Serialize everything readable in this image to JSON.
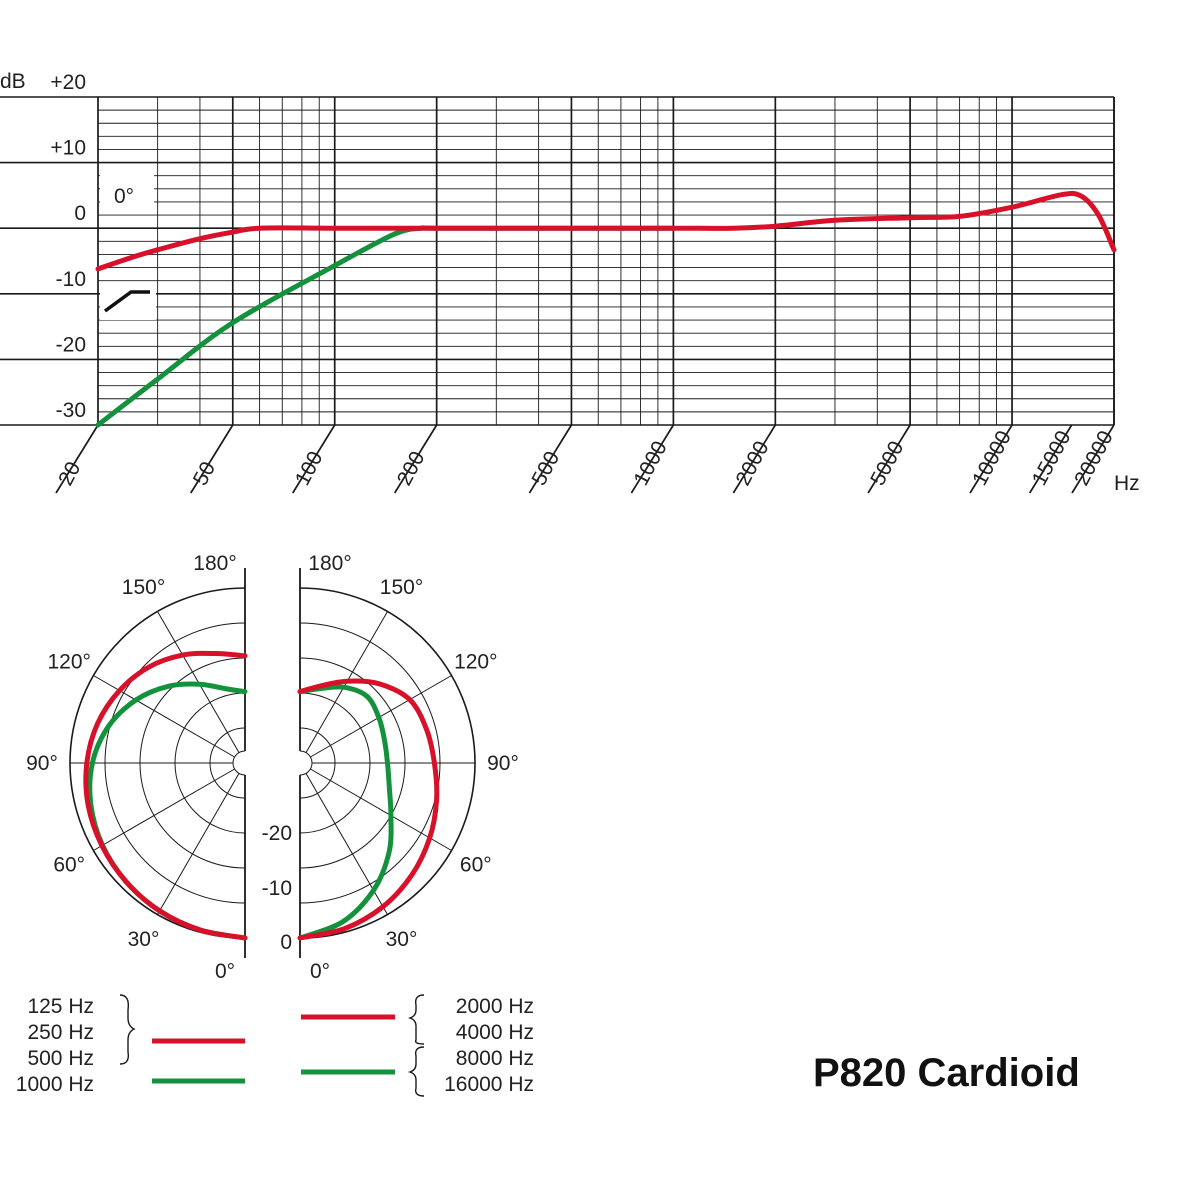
{
  "title": "P820 Cardioid",
  "colors": {
    "red": "#d8102a",
    "green": "#14913d",
    "grid": "#1a1a1a",
    "text": "#222222"
  },
  "chart_data": [
    {
      "type": "line",
      "xscale": "log",
      "xlim": [
        20,
        20000
      ],
      "ylim": [
        -30,
        20
      ],
      "x_unit_label": "Hz",
      "y_unit_label": "dB",
      "y_ticks": [
        {
          "value": 20,
          "label": "+20"
        },
        {
          "value": 10,
          "label": "+10"
        },
        {
          "value": 0,
          "label": "0"
        },
        {
          "value": -10,
          "label": "-10"
        },
        {
          "value": -20,
          "label": "-20"
        },
        {
          "value": -30,
          "label": "-30"
        }
      ],
      "x_ticks": [
        {
          "value": 20,
          "label": "20"
        },
        {
          "value": 50,
          "label": "50"
        },
        {
          "value": 100,
          "label": "100"
        },
        {
          "value": 200,
          "label": "200"
        },
        {
          "value": 500,
          "label": "500"
        },
        {
          "value": 1000,
          "label": "1000"
        },
        {
          "value": 2000,
          "label": "2000"
        },
        {
          "value": 5000,
          "label": "5000"
        },
        {
          "value": 10000,
          "label": "10000"
        },
        {
          "value": 15000,
          "label": "15000"
        },
        {
          "value": 20000,
          "label": "20000"
        }
      ],
      "angle_label": "0°",
      "grid": true,
      "series": [
        {
          "color": "red",
          "x": [
            20,
            25,
            30,
            40,
            50,
            60,
            100,
            200,
            500,
            1000,
            1500,
            2000,
            3000,
            5000,
            7000,
            10000,
            14000,
            16000,
            18000,
            20000
          ],
          "y": [
            -6.2,
            -4.5,
            -3.3,
            -1.6,
            -0.6,
            0,
            0,
            0,
            0,
            0,
            0,
            0.3,
            1.2,
            1.6,
            1.8,
            3.2,
            5.1,
            4.9,
            2.0,
            -3.3
          ]
        },
        {
          "color": "green",
          "x": [
            20,
            30,
            50,
            100,
            150,
            180,
            200,
            500,
            1000
          ],
          "y": [
            -30,
            -23,
            -14.4,
            -5.7,
            -0.9,
            0,
            0,
            0,
            0
          ]
        }
      ],
      "filter_symbol": "low-cut-icon"
    },
    {
      "type": "polar",
      "rings_db": [
        0,
        -5,
        -10,
        -15,
        -20,
        -25
      ],
      "ring_labels": [
        "0",
        "-10",
        "-20"
      ],
      "angle_labels_left": [
        "180°",
        "150°",
        "120°",
        "90°",
        "60°",
        "30°",
        "0°"
      ],
      "angle_labels_right": [
        "180°",
        "150°",
        "120°",
        "90°",
        "60°",
        "30°",
        "0°"
      ],
      "half_plots": [
        {
          "side": "left",
          "series": [
            {
              "color": "red",
              "angles": [
                0,
                15,
                30,
                45,
                60,
                75,
                90,
                105,
                120,
                135,
                150,
                165,
                180
              ],
              "db": [
                0,
                -0.3,
                -0.6,
                -1,
                -1.4,
                -1.8,
                -2.4,
                -3.2,
                -4.3,
                -5.6,
                -7.2,
                -8.8,
                -9.7
              ]
            },
            {
              "color": "green",
              "angles": [
                0,
                15,
                30,
                45,
                60,
                75,
                90,
                105,
                120,
                135,
                150,
                165,
                180
              ],
              "db": [
                0,
                -0.3,
                -0.6,
                -1,
                -1.5,
                -2.2,
                -3.2,
                -4.8,
                -7,
                -9.5,
                -12,
                -14,
                -14.8
              ]
            }
          ]
        },
        {
          "side": "right",
          "series": [
            {
              "color": "red",
              "angles": [
                0,
                15,
                30,
                45,
                60,
                75,
                90,
                105,
                120,
                135,
                150,
                165,
                180
              ],
              "db": [
                0,
                -0.5,
                -1.3,
                -2.4,
                -3.6,
                -4.8,
                -5.8,
                -6.3,
                -6.9,
                -9,
                -11.5,
                -13.6,
                -14.8
              ]
            },
            {
              "color": "green",
              "angles": [
                0,
                15,
                30,
                45,
                60,
                75,
                90,
                105,
                120,
                135,
                150,
                165,
                180
              ],
              "db": [
                0,
                -1.5,
                -4,
                -7,
                -10,
                -11.8,
                -12.5,
                -12.5,
                -12,
                -11.5,
                -12.5,
                -14,
                -14.8
              ]
            }
          ]
        }
      ]
    }
  ],
  "legend": {
    "left": {
      "red_labels": [
        "125 Hz",
        "250 Hz",
        "500 Hz"
      ],
      "green_labels": [
        "1000 Hz"
      ]
    },
    "right": {
      "red_labels": [
        "2000 Hz",
        "4000 Hz"
      ],
      "green_labels": [
        "8000 Hz",
        "16000 Hz"
      ]
    }
  }
}
